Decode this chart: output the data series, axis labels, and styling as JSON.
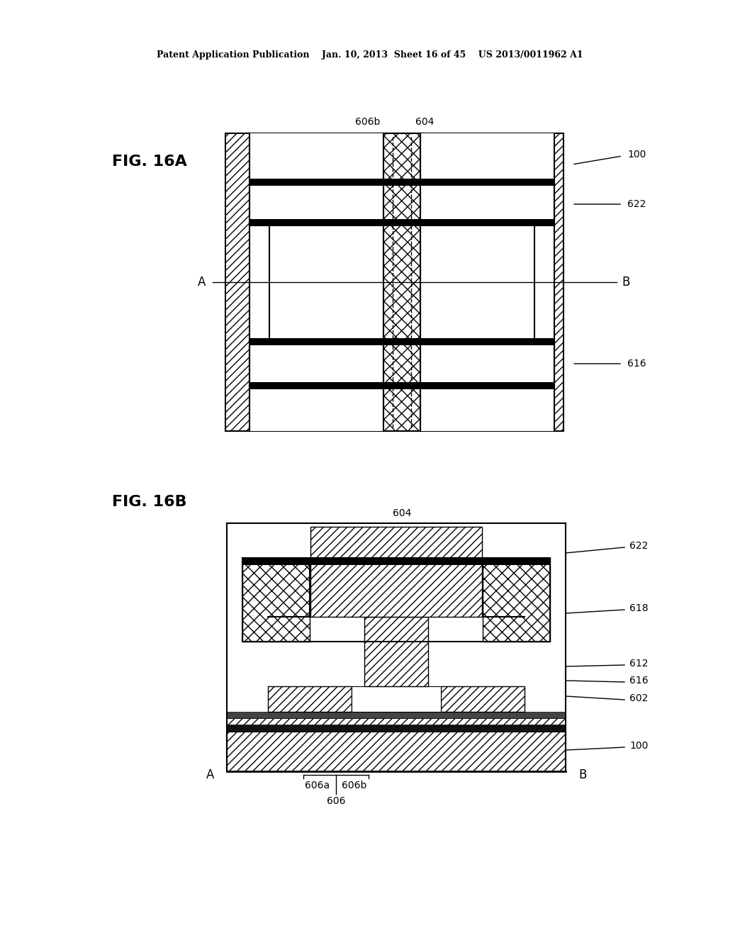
{
  "bg_color": "#ffffff",
  "title_header": "Patent Application Publication    Jan. 10, 2013  Sheet 16 of 45    US 2013/0011962 A1",
  "fig16a_label": "FIG. 16A",
  "fig16b_label": "FIG. 16B",
  "line_color": "#000000",
  "labels": {
    "606b_16a": "606b",
    "604_16a": "604",
    "100_16a": "100",
    "622_16a": "622",
    "616_16a": "616",
    "A_16a": "A",
    "B_16a": "B",
    "604_16b": "604",
    "622_16b": "622",
    "618_16b": "618",
    "612_16b": "612",
    "616_16b": "616",
    "602_16b": "602",
    "100_16b": "100",
    "A_16b": "A",
    "B_16b": "B",
    "606a_16b": "606a",
    "606b_16b": "606b",
    "606_16b": "606"
  }
}
